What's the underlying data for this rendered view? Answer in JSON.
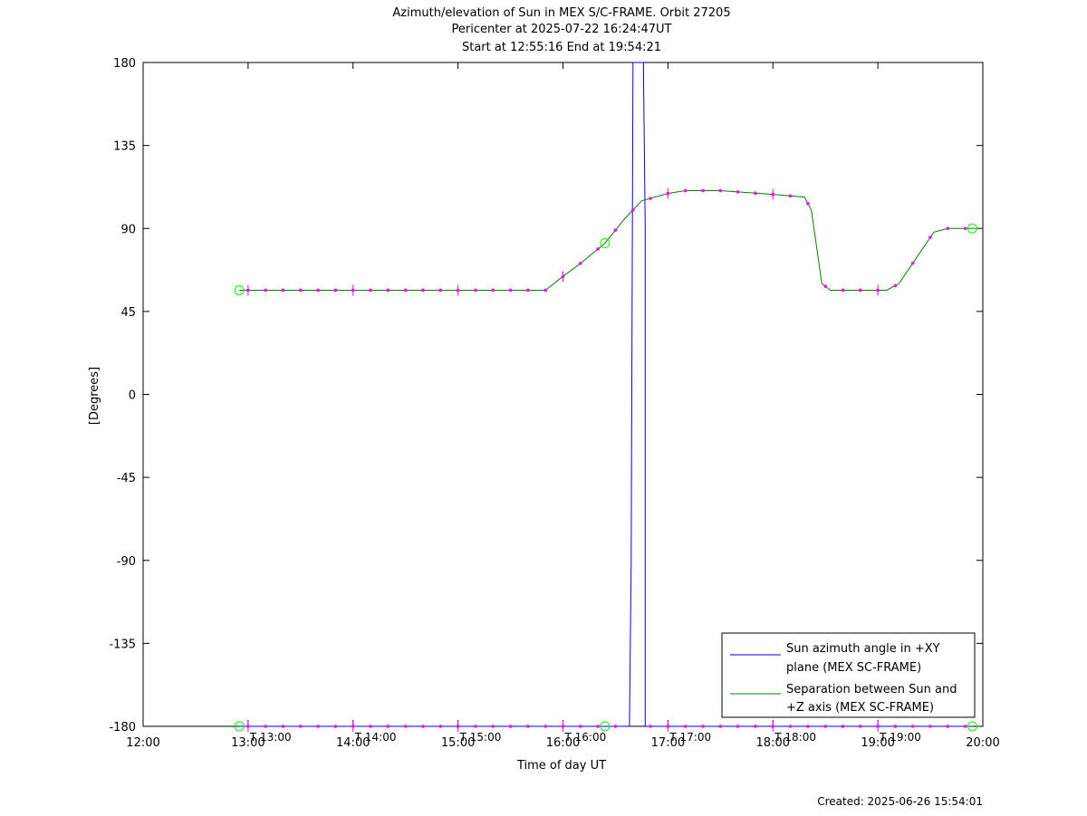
{
  "chart_data": {
    "type": "line",
    "title": "Azimuth/elevation of Sun in MEX S/C-FRAME.  Orbit 27205",
    "subtitle_1": "Pericenter at 2025-07-22 16:24:47UT",
    "subtitle_2": "Start at 12:55:16 End at 19:54:21",
    "xlabel": "Time of day UT",
    "ylabel": "[Degrees]",
    "xlim": [
      "12:00",
      "20:00"
    ],
    "ylim": [
      -180,
      180
    ],
    "x_ticks": [
      "12:00",
      "13:00",
      "14:00",
      "15:00",
      "16:00",
      "17:00",
      "18:00",
      "19:00",
      "20:00"
    ],
    "y_ticks": [
      "180",
      "135",
      "90",
      "45",
      "0",
      "-45",
      "-90",
      "-135",
      "-180"
    ],
    "T_markers": [
      "T 13:00",
      "T 14:00",
      "T 15:00",
      "T 16:00",
      "T 17:00",
      "T 18:00",
      "T 19:00"
    ],
    "legend_position": "bottom-right",
    "grid": false,
    "series": [
      {
        "name": "Sun azimuth angle in +XY plane (MEX SC-FRAME)",
        "legend_line1": "Sun azimuth angle in +XY",
        "legend_line2": "plane (MEX SC-FRAME)",
        "color": "#0000ff",
        "points": [
          [
            "12:55",
            -180
          ],
          [
            "16:38",
            -180
          ],
          [
            "16:39",
            -90
          ],
          [
            "16:40",
            180
          ],
          [
            "16:46",
            180
          ],
          [
            "16:47",
            90
          ],
          [
            "16:47",
            -180
          ],
          [
            "19:54",
            -180
          ]
        ]
      },
      {
        "name": "Separation between Sun and +Z axis (MEX SC-FRAME)",
        "legend_line1": "Separation between Sun and",
        "legend_line2": "+Z axis (MEX SC-FRAME)",
        "color": "#008000",
        "points": [
          [
            "12:55",
            56.5
          ],
          [
            "15:50",
            56.5
          ],
          [
            "16:00",
            64
          ],
          [
            "16:10",
            71
          ],
          [
            "16:24",
            82
          ],
          [
            "16:35",
            95
          ],
          [
            "16:45",
            105
          ],
          [
            "17:00",
            109
          ],
          [
            "17:10",
            110.5
          ],
          [
            "17:30",
            110.5
          ],
          [
            "18:00",
            108.5
          ],
          [
            "18:18",
            107
          ],
          [
            "18:22",
            100
          ],
          [
            "18:28",
            60
          ],
          [
            "18:33",
            56.5
          ],
          [
            "19:05",
            56.5
          ],
          [
            "19:12",
            60
          ],
          [
            "19:22",
            74
          ],
          [
            "19:32",
            88
          ],
          [
            "19:40",
            90
          ],
          [
            "20:00",
            90
          ]
        ]
      }
    ],
    "marker_color": "#ff00ff",
    "marker_color_pericenter": "#00ff00"
  },
  "footer": {
    "created": "Created: 2025-06-26 15:54:01"
  }
}
